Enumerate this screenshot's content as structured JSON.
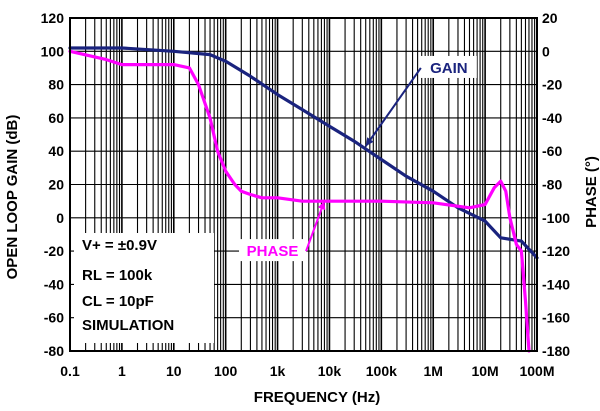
{
  "chart_data": {
    "type": "line",
    "xlabel": "FREQUENCY (Hz)",
    "ylabel_left": "OPEN LOOP GAIN (dB)",
    "ylabel_right": "PHASE (°)",
    "x_scale": "log",
    "xlim": [
      0.1,
      100000000
    ],
    "ylim_left": [
      -80,
      120
    ],
    "ylim_right": [
      -180,
      20
    ],
    "x_ticks": [
      {
        "value": 0.1,
        "label": "0.1"
      },
      {
        "value": 1,
        "label": "1"
      },
      {
        "value": 10,
        "label": "10"
      },
      {
        "value": 100,
        "label": "100"
      },
      {
        "value": 1000,
        "label": "1k"
      },
      {
        "value": 10000,
        "label": "10k"
      },
      {
        "value": 100000,
        "label": "100k"
      },
      {
        "value": 1000000,
        "label": "1M"
      },
      {
        "value": 10000000,
        "label": "10M"
      },
      {
        "value": 100000000,
        "label": "100M"
      }
    ],
    "y_ticks_left": [
      "120",
      "100",
      "80",
      "60",
      "40",
      "20",
      "0",
      "-20",
      "-40",
      "-60",
      "-80"
    ],
    "y_ticks_right": [
      "20",
      "0",
      "-20",
      "-40",
      "-60",
      "-80",
      "-100",
      "-120",
      "-140",
      "-160",
      "-180"
    ],
    "grid": true,
    "series": [
      {
        "name": "GAIN",
        "axis": "left",
        "color": "#1a237e",
        "x": [
          0.1,
          1,
          10,
          50,
          100,
          300,
          1000,
          3000,
          10000,
          30000,
          100000,
          300000,
          1000000,
          3000000,
          10000000,
          20000000,
          50000000,
          100000000
        ],
        "y": [
          102,
          102,
          100,
          98,
          94,
          85,
          74,
          65,
          55,
          46,
          35,
          25,
          16,
          6,
          -2,
          -12,
          -14,
          -24
        ]
      },
      {
        "name": "PHASE",
        "axis": "right",
        "color": "#ff00ff",
        "x": [
          0.1,
          0.5,
          1,
          3,
          10,
          20,
          30,
          50,
          70,
          100,
          150,
          200,
          300,
          500,
          1000,
          3000,
          10000,
          100000,
          1000000,
          5000000,
          10000000,
          15000000,
          20000000,
          25000000,
          30000000,
          40000000,
          50000000,
          60000000,
          70000000
        ],
        "y": [
          0,
          -5,
          -8,
          -8,
          -8,
          -10,
          -20,
          -40,
          -60,
          -72,
          -80,
          -84,
          -86,
          -88,
          -88,
          -90,
          -90,
          -90,
          -91,
          -94,
          -92,
          -82,
          -78,
          -84,
          -100,
          -116,
          -120,
          -150,
          -180
        ]
      }
    ],
    "series_labels": [
      {
        "series": "GAIN",
        "text": "GAIN",
        "at": [
          2000000,
          90
        ],
        "axis": "left",
        "arrow_to": [
          50000,
          43
        ]
      },
      {
        "series": "PHASE",
        "text": "PHASE",
        "at": [
          800,
          -20
        ],
        "axis": "left",
        "arrow_to": [
          8000,
          10
        ]
      }
    ],
    "notes": [
      "V+ = ±0.9V",
      "RL = 100k",
      "CL = 10pF",
      "SIMULATION"
    ]
  }
}
